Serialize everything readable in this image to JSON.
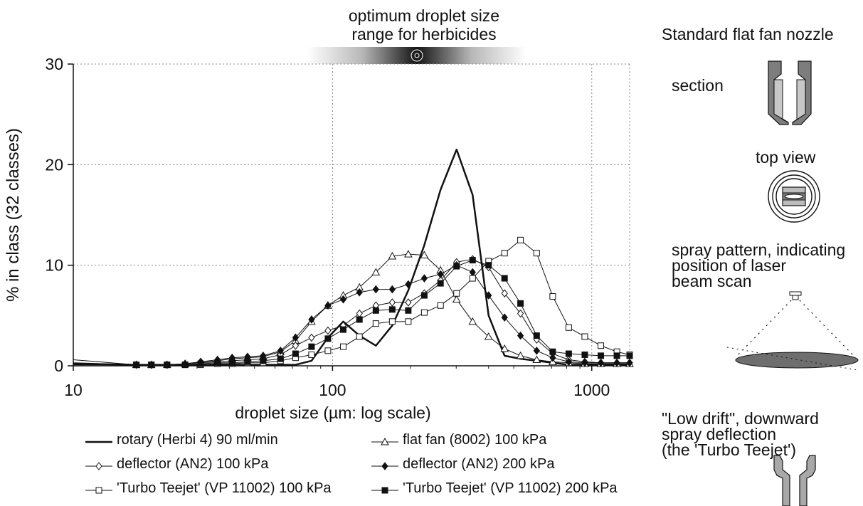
{
  "chart_data": {
    "type": "line",
    "title": "optimum droplet size\nrange for herbicides",
    "xlabel": "droplet size (µm: log scale)",
    "ylabel": "% in class (32 classes)",
    "x_scale": "log",
    "xlim": [
      10,
      1400
    ],
    "ylim": [
      0,
      30
    ],
    "x_ticks": [
      10,
      100,
      1000
    ],
    "y_ticks": [
      0,
      10,
      20,
      30
    ],
    "grid": true,
    "legend_position": "bottom",
    "optimum_band": [
      80,
      560
    ],
    "series": [
      {
        "name": "rotary (Herbi 4) 90 ml/min",
        "marker": "none",
        "line_width": 2.5,
        "x": [
          10,
          17.5,
          20,
          23,
          27,
          31,
          36,
          41,
          47,
          54,
          63,
          72,
          83,
          96,
          110,
          127,
          147,
          170,
          196,
          226,
          261,
          301,
          347,
          400,
          461,
          531,
          613,
          707,
          815,
          940,
          1084,
          1250,
          1400
        ],
        "y": [
          0.2,
          0.1,
          0.1,
          0.1,
          0.1,
          0.1,
          0.1,
          0.1,
          0.1,
          0.1,
          0.1,
          0.1,
          0.5,
          2.8,
          4.4,
          3.0,
          2.0,
          4.0,
          7.5,
          12.0,
          17.5,
          21.5,
          17.0,
          5.0,
          1.0,
          0.7,
          0.5,
          0.3,
          0.1,
          0.1,
          0.1,
          0.1,
          0.1
        ]
      },
      {
        "name": "flat fan (8002) 100 kPa",
        "marker": "triangle-open",
        "x": [
          10,
          17.5,
          20,
          23,
          27,
          31,
          36,
          41,
          47,
          54,
          63,
          72,
          83,
          96,
          110,
          127,
          147,
          170,
          196,
          226,
          261,
          301,
          347,
          400,
          461,
          531,
          613,
          707,
          815,
          940,
          1084,
          1250,
          1400
        ],
        "y": [
          0.6,
          0.1,
          0.1,
          0.1,
          0.2,
          0.3,
          0.5,
          0.7,
          0.8,
          0.9,
          1.4,
          2.5,
          4.4,
          6.0,
          7.0,
          7.8,
          9.3,
          10.9,
          11.1,
          11.0,
          9.5,
          6.6,
          4.4,
          2.9,
          1.7,
          1.0,
          0.6,
          0.4,
          0.3,
          0.2,
          0.2,
          0.2,
          0.2
        ]
      },
      {
        "name": "deflector (AN2) 100 kPa",
        "marker": "diamond-open",
        "x": [
          10,
          17.5,
          20,
          23,
          27,
          31,
          36,
          41,
          47,
          54,
          63,
          72,
          83,
          96,
          110,
          127,
          147,
          170,
          196,
          226,
          261,
          301,
          347,
          400,
          461,
          531,
          613,
          707,
          815,
          940,
          1084,
          1250,
          1400
        ],
        "y": [
          0.2,
          0.1,
          0.1,
          0.1,
          0.2,
          0.3,
          0.4,
          0.5,
          0.6,
          0.7,
          1.1,
          2.0,
          2.8,
          3.5,
          4.0,
          5.2,
          6.0,
          6.3,
          6.3,
          7.2,
          8.5,
          10.3,
          10.6,
          9.8,
          7.2,
          5.2,
          2.6,
          1.2,
          0.6,
          0.4,
          0.3,
          0.3,
          0.3
        ]
      },
      {
        "name": "deflector (AN2) 200 kPa",
        "marker": "diamond-filled",
        "x": [
          10,
          17.5,
          20,
          23,
          27,
          31,
          36,
          41,
          47,
          54,
          63,
          72,
          83,
          96,
          110,
          127,
          147,
          170,
          196,
          226,
          261,
          301,
          347,
          400,
          461,
          531,
          613,
          707,
          815,
          940,
          1084,
          1250,
          1400
        ],
        "y": [
          0.3,
          0.1,
          0.1,
          0.1,
          0.2,
          0.4,
          0.6,
          0.8,
          0.9,
          1.0,
          1.5,
          2.8,
          4.6,
          6.0,
          6.6,
          7.3,
          7.6,
          7.6,
          8.1,
          8.7,
          9.1,
          10.0,
          9.3,
          7.0,
          4.8,
          3.0,
          1.5,
          0.8,
          0.4,
          0.3,
          0.3,
          0.3,
          0.3
        ]
      },
      {
        "name": "'Turbo Teejet' (VP 11002) 100 kPa",
        "marker": "square-open",
        "x": [
          10,
          17.5,
          20,
          23,
          27,
          31,
          36,
          41,
          47,
          54,
          63,
          72,
          83,
          96,
          110,
          127,
          147,
          170,
          196,
          226,
          261,
          301,
          347,
          400,
          461,
          531,
          613,
          707,
          815,
          940,
          1084,
          1250,
          1400
        ],
        "y": [
          0.1,
          0.1,
          0.1,
          0.1,
          0.1,
          0.1,
          0.2,
          0.2,
          0.3,
          0.3,
          0.5,
          0.8,
          1.1,
          1.5,
          1.9,
          2.9,
          4.2,
          4.4,
          4.4,
          5.3,
          6.0,
          7.2,
          8.7,
          10.4,
          11.2,
          12.5,
          11.2,
          6.9,
          3.8,
          2.9,
          2.0,
          1.4,
          1.1
        ]
      },
      {
        "name": "'Turbo Teejet' (VP 11002) 200 kPa",
        "marker": "square-filled",
        "x": [
          10,
          17.5,
          20,
          23,
          27,
          31,
          36,
          41,
          47,
          54,
          63,
          72,
          83,
          96,
          110,
          127,
          147,
          170,
          196,
          226,
          261,
          301,
          347,
          400,
          461,
          531,
          613,
          707,
          815,
          940,
          1084,
          1250,
          1400
        ],
        "y": [
          0.1,
          0.1,
          0.1,
          0.1,
          0.1,
          0.2,
          0.3,
          0.3,
          0.4,
          0.5,
          0.7,
          1.2,
          1.9,
          2.7,
          3.6,
          4.6,
          5.5,
          5.6,
          5.5,
          7.0,
          8.2,
          9.9,
          10.5,
          10.0,
          8.7,
          6.2,
          3.0,
          1.4,
          1.2,
          1.1,
          1.0,
          1.0,
          1.0
        ]
      }
    ]
  },
  "side_panel": {
    "title": "Standard flat fan nozzle",
    "section_label": "section",
    "top_view_label": "top view",
    "spray_pattern_label": "spray pattern, indicating\nposition of laser\nbeam scan",
    "low_drift_label": "\"Low drift\", downward\nspray deflection\n(the 'Turbo Teejet')"
  },
  "colors": {
    "ink": "#111111",
    "grid": "#888888",
    "nozzle_dark": "#7d7d7d",
    "nozzle_light": "#c8c8c8",
    "ellipse_fill": "#6e6e6e"
  }
}
